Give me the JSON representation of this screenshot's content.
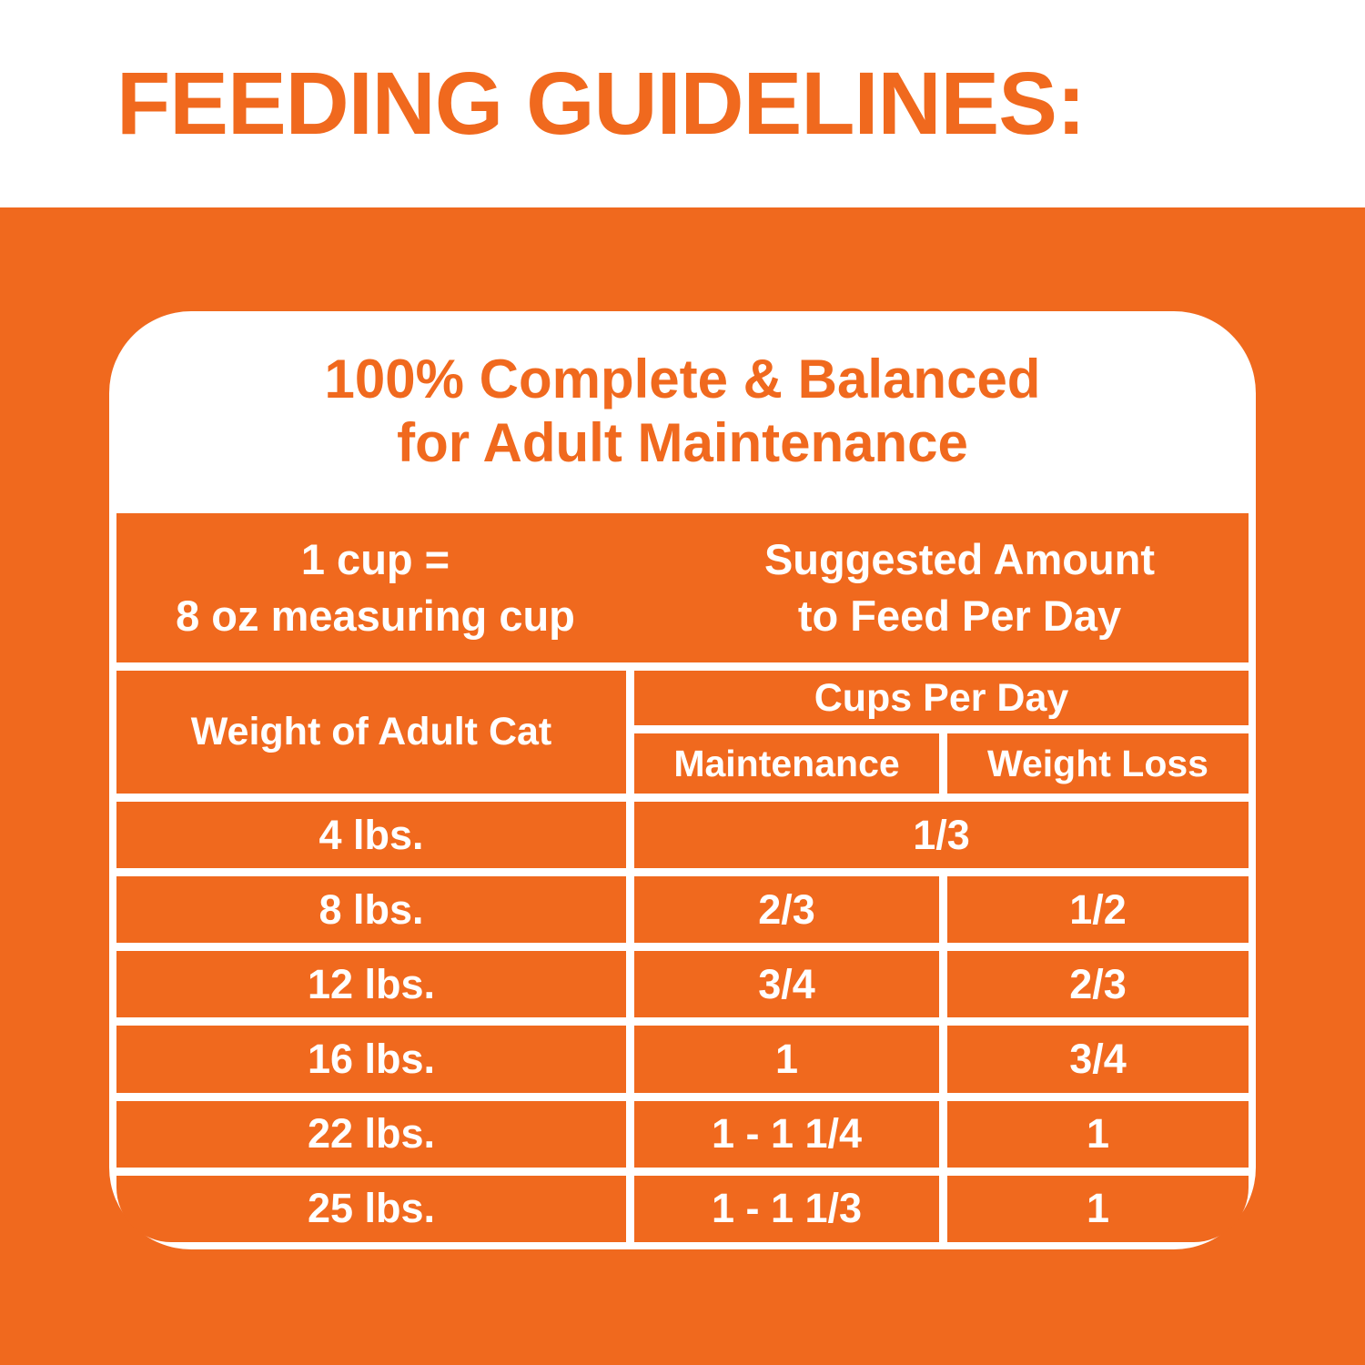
{
  "colors": {
    "orange": "#F0691E",
    "white": "#FFFFFF"
  },
  "page_title": "FEEDING GUIDELINES:",
  "card": {
    "heading_line1": "100% Complete & Balanced",
    "heading_line2": "for Adult Maintenance",
    "band": {
      "cup_line1": "1 cup =",
      "cup_line2": "8 oz measuring cup",
      "suggest_line1": "Suggested Amount",
      "suggest_line2": "to Feed Per Day"
    },
    "table": {
      "col_weight_header": "Weight of Adult Cat",
      "col_group_header": "Cups Per Day",
      "col_maintenance_header": "Maintenance",
      "col_weight_loss_header": "Weight Loss",
      "rows": [
        {
          "weight": "4 lbs.",
          "maintenance": "1/3",
          "weight_loss": "",
          "merged": true
        },
        {
          "weight": "8 lbs.",
          "maintenance": "2/3",
          "weight_loss": "1/2",
          "merged": false
        },
        {
          "weight": "12 lbs.",
          "maintenance": "3/4",
          "weight_loss": "2/3",
          "merged": false
        },
        {
          "weight": "16 lbs.",
          "maintenance": "1",
          "weight_loss": "3/4",
          "merged": false
        },
        {
          "weight": "22 lbs.",
          "maintenance": "1 - 1 1/4",
          "weight_loss": "1",
          "merged": false
        },
        {
          "weight": "25 lbs.",
          "maintenance": "1 - 1 1/3",
          "weight_loss": "1",
          "merged": false
        }
      ]
    }
  }
}
